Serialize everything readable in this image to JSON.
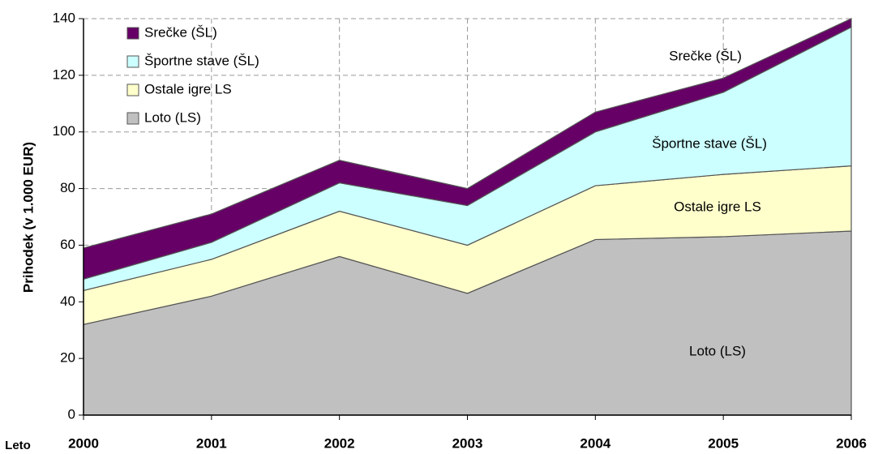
{
  "chart_data": {
    "type": "stacked_area",
    "x_label": "Leto",
    "y_label": "Prihodek (v 1.000 EUR)",
    "categories": [
      "2000",
      "2001",
      "2002",
      "2003",
      "2004",
      "2005",
      "2006"
    ],
    "series": [
      {
        "name": "Loto (LS)",
        "color": "#c0c0c0",
        "values": [
          32,
          42,
          56,
          43,
          62,
          63,
          65
        ]
      },
      {
        "name": "Ostale igre LS",
        "color": "#ffffcc",
        "values": [
          12,
          13,
          16,
          17,
          19,
          22,
          23
        ]
      },
      {
        "name": "Športne stave (ŠL)",
        "color": "#ccffff",
        "values": [
          4,
          6,
          10,
          14,
          19,
          29,
          49
        ]
      },
      {
        "name": "Srečke (ŠL)",
        "color": "#660066",
        "values": [
          11,
          10,
          8,
          6,
          7,
          5,
          3
        ]
      }
    ],
    "ylim": [
      0,
      140
    ],
    "yticks": [
      0,
      20,
      40,
      60,
      80,
      100,
      120,
      140
    ],
    "grid": true,
    "legend": "upper left"
  }
}
